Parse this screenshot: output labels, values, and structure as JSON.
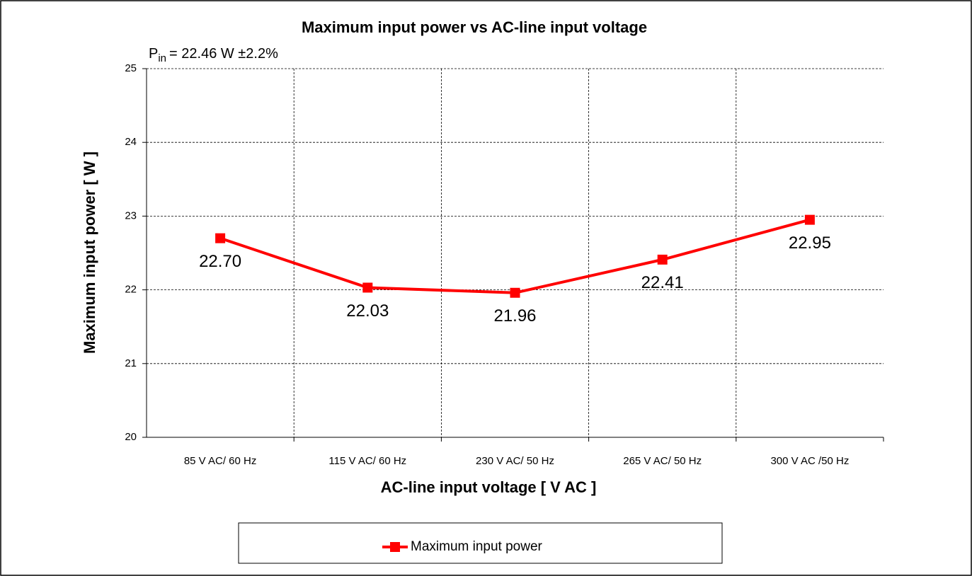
{
  "chart_data": {
    "type": "line",
    "title": "Maximum input power vs AC-line input voltage",
    "annotation": {
      "symbol": "P",
      "subscript": "in",
      "text": "= 22.46 W ±2.2%"
    },
    "x_label": "AC-line input voltage [ V AC ]",
    "y_label": "Maximum input power [ W ]",
    "categories": [
      "85 V AC/ 60 Hz",
      "115 V AC/ 60 Hz",
      "230 V AC/ 50 Hz",
      "265 V AC/ 50 Hz",
      "300 V AC /50 Hz"
    ],
    "series": [
      {
        "name": "Maximum input power",
        "color": "#ff0000",
        "values": [
          22.7,
          22.03,
          21.96,
          22.41,
          22.95
        ],
        "value_labels": [
          "22.70",
          "22.03",
          "21.96",
          "22.41",
          "22.95"
        ]
      }
    ],
    "ylim": [
      20,
      25
    ],
    "yticks": [
      20,
      21,
      22,
      23,
      24,
      25
    ],
    "grid": true,
    "legend": "bottom"
  }
}
